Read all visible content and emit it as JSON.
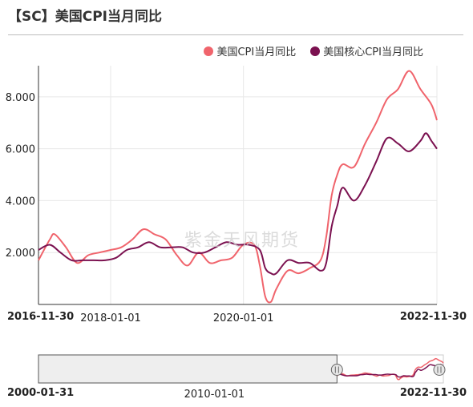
{
  "title": "【SC】美国CPI当月同比",
  "watermark": "紫金天风期货",
  "colors": {
    "cpi": "#f0646c",
    "core": "#7b1150",
    "grid": "#e8e8e8",
    "axis": "#333333"
  },
  "chart_data": {
    "type": "line",
    "title": "【SC】美国CPI当月同比",
    "xlabel": "",
    "ylabel": "",
    "x_range": [
      "2016-11-30",
      "2022-11-30"
    ],
    "ylim": [
      0,
      9.2
    ],
    "yticks": [
      2,
      4,
      6,
      8
    ],
    "ytick_labels": [
      "2.000",
      "4.000",
      "6.000",
      "8.000"
    ],
    "xtick_labels": [
      "2016-11-30",
      "2018-01-01",
      "2020-01-01",
      "2022-11-30"
    ],
    "grid": true,
    "legend": "top-right",
    "series": [
      {
        "name": "美国CPI当月同比",
        "x": [
          "2016-11-30",
          "2017-01-31",
          "2017-02-28",
          "2017-04-30",
          "2017-06-30",
          "2017-08-31",
          "2017-10-31",
          "2017-12-31",
          "2018-02-28",
          "2018-04-30",
          "2018-06-30",
          "2018-08-31",
          "2018-10-31",
          "2018-12-31",
          "2019-02-28",
          "2019-04-30",
          "2019-06-30",
          "2019-08-31",
          "2019-10-31",
          "2019-12-31",
          "2020-02-29",
          "2020-03-31",
          "2020-04-30",
          "2020-05-31",
          "2020-06-30",
          "2020-08-31",
          "2020-10-31",
          "2020-12-31",
          "2021-02-28",
          "2021-03-31",
          "2021-04-30",
          "2021-05-31",
          "2021-06-30",
          "2021-08-31",
          "2021-10-31",
          "2021-12-31",
          "2022-02-28",
          "2022-04-30",
          "2022-06-30",
          "2022-08-31",
          "2022-10-31",
          "2022-11-30"
        ],
        "values": [
          1.7,
          2.5,
          2.7,
          2.2,
          1.6,
          1.9,
          2.0,
          2.1,
          2.2,
          2.5,
          2.9,
          2.7,
          2.5,
          1.9,
          1.5,
          2.0,
          1.6,
          1.7,
          1.8,
          2.3,
          2.3,
          1.5,
          0.3,
          0.1,
          0.6,
          1.3,
          1.2,
          1.4,
          1.7,
          2.6,
          4.2,
          5.0,
          5.4,
          5.3,
          6.2,
          7.0,
          7.9,
          8.3,
          9.0,
          8.3,
          7.7,
          7.1
        ]
      },
      {
        "name": "美国核心CPI当月同比",
        "x": [
          "2016-11-30",
          "2017-01-31",
          "2017-03-31",
          "2017-05-31",
          "2017-07-31",
          "2017-09-30",
          "2017-11-30",
          "2018-01-31",
          "2018-03-31",
          "2018-05-31",
          "2018-07-31",
          "2018-09-30",
          "2018-11-30",
          "2019-01-31",
          "2019-03-31",
          "2019-05-31",
          "2019-07-31",
          "2019-09-30",
          "2019-11-30",
          "2020-01-31",
          "2020-03-31",
          "2020-04-30",
          "2020-05-31",
          "2020-06-30",
          "2020-08-31",
          "2020-10-31",
          "2020-12-31",
          "2021-02-28",
          "2021-03-31",
          "2021-04-30",
          "2021-05-31",
          "2021-06-30",
          "2021-08-31",
          "2021-10-31",
          "2021-12-31",
          "2022-02-28",
          "2022-04-30",
          "2022-06-30",
          "2022-08-31",
          "2022-09-30",
          "2022-10-31",
          "2022-11-30"
        ],
        "values": [
          2.1,
          2.3,
          2.0,
          1.7,
          1.7,
          1.7,
          1.7,
          1.8,
          2.1,
          2.2,
          2.4,
          2.2,
          2.2,
          2.2,
          2.0,
          2.0,
          2.2,
          2.4,
          2.3,
          2.3,
          2.1,
          1.4,
          1.2,
          1.2,
          1.7,
          1.6,
          1.6,
          1.3,
          1.6,
          3.0,
          3.8,
          4.5,
          4.0,
          4.6,
          5.5,
          6.4,
          6.2,
          5.9,
          6.3,
          6.6,
          6.3,
          6.0
        ]
      }
    ],
    "navigator": {
      "x_range": [
        "2000-01-31",
        "2022-11-30"
      ],
      "xtick_labels": [
        "2000-01-31",
        "2010-01-01",
        "2022-11-30"
      ],
      "window": [
        "2000-01-31",
        "2016-11-30"
      ]
    }
  }
}
